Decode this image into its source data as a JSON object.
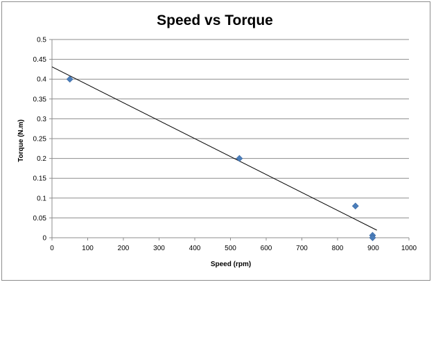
{
  "chart_data": {
    "type": "scatter",
    "title": "Speed vs Torque",
    "xlabel": "Speed (rpm)",
    "ylabel": "Torque (N.m)",
    "xlim": [
      0,
      1000
    ],
    "ylim": [
      0,
      0.5
    ],
    "xticks": [
      0,
      100,
      200,
      300,
      400,
      500,
      600,
      700,
      800,
      900,
      1000
    ],
    "yticks": [
      0,
      0.05,
      0.1,
      0.15,
      0.2,
      0.25,
      0.3,
      0.35,
      0.4,
      0.45,
      0.5
    ],
    "ytick_labels": [
      "0",
      "0.05",
      "0.1",
      "0.15",
      "0.2",
      "0.25",
      "0.3",
      "0.35",
      "0.4",
      "0.45",
      "0.5"
    ],
    "grid": "horizontal",
    "legend": "none",
    "series": [
      {
        "points": [
          {
            "x": 50,
            "y": 0.4
          },
          {
            "x": 525,
            "y": 0.2
          },
          {
            "x": 850,
            "y": 0.08
          },
          {
            "x": 898,
            "y": 0.006
          },
          {
            "x": 898,
            "y": 0.0
          }
        ],
        "color": "#4a7ebb",
        "marker": "diamond"
      }
    ],
    "trendline": {
      "type": "linear",
      "x_start": 0,
      "y_start": 0.431,
      "x_end": 910,
      "y_end": 0.019,
      "color": "#000000"
    }
  }
}
